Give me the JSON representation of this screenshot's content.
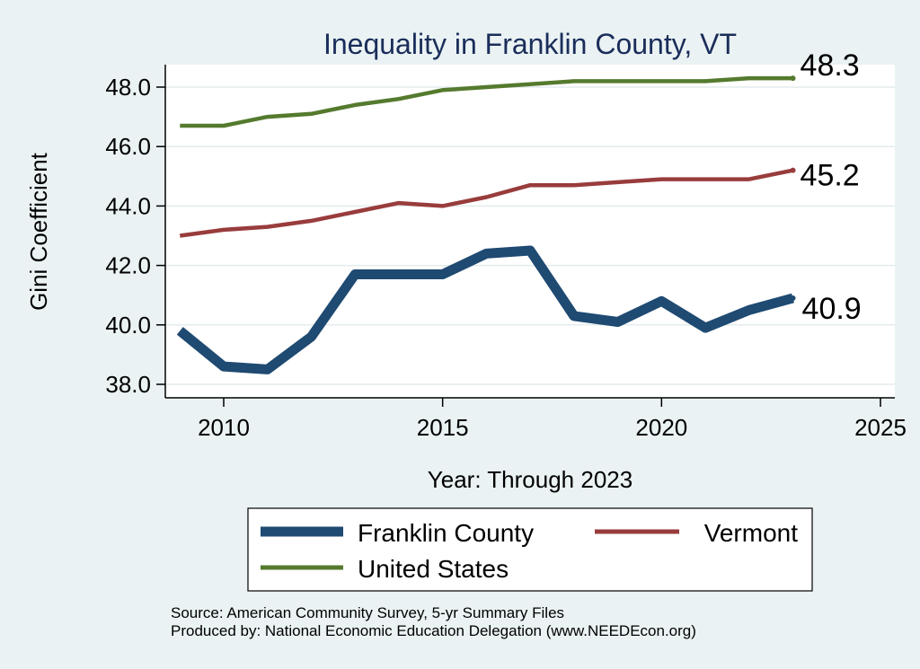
{
  "chart_data": {
    "type": "line",
    "title": "Inequality in Franklin County, VT",
    "xlabel": "Year: Through 2023",
    "ylabel": "Gini Coefficient",
    "xlim": [
      2009,
      2025
    ],
    "ylim": [
      37.8,
      48.8
    ],
    "x_ticks": [
      2010,
      2015,
      2020,
      2025
    ],
    "y_ticks": [
      38.0,
      40.0,
      42.0,
      44.0,
      46.0,
      48.0
    ],
    "grid": true,
    "legend_position": "bottom",
    "x": [
      2009,
      2010,
      2011,
      2012,
      2013,
      2014,
      2015,
      2016,
      2017,
      2018,
      2019,
      2020,
      2021,
      2022,
      2023
    ],
    "series": [
      {
        "name": "Franklin County",
        "color": "#1f4a72",
        "values": [
          39.8,
          38.6,
          38.5,
          39.6,
          41.7,
          41.7,
          41.7,
          42.4,
          42.5,
          40.3,
          40.1,
          40.8,
          39.9,
          40.5,
          40.9
        ],
        "end_label": "40.9"
      },
      {
        "name": "Vermont",
        "color": "#993c3c",
        "values": [
          43.0,
          43.2,
          43.3,
          43.5,
          43.8,
          44.1,
          44.0,
          44.3,
          44.7,
          44.7,
          44.8,
          44.9,
          44.9,
          44.9,
          45.2
        ],
        "end_label": "45.2"
      },
      {
        "name": "United States",
        "color": "#557a2e",
        "values": [
          46.7,
          46.7,
          47.0,
          47.1,
          47.4,
          47.6,
          47.9,
          48.0,
          48.1,
          48.2,
          48.2,
          48.2,
          48.2,
          48.3,
          48.3
        ],
        "end_label": "48.3"
      }
    ]
  },
  "footer": {
    "source": "Source: American Community Survey, 5-yr Summary Files",
    "produced_by": "Produced by: National Economic Education Delegation (www.NEEDEcon.org)"
  }
}
